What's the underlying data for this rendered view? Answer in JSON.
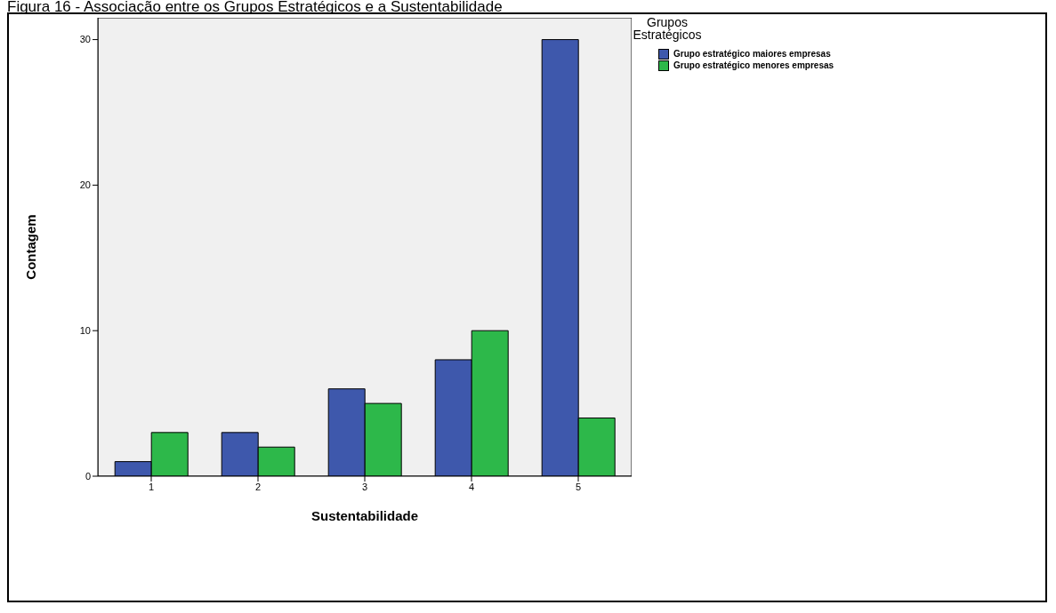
{
  "chart_data": {
    "type": "bar",
    "title": "Figura 16 - Associação entre os Grupos Estratégicos e a Sustentabilidade",
    "xlabel": "Sustentabilidade",
    "ylabel": "Contagem",
    "legend_title": "Grupos Estratégicos",
    "categories": [
      "1",
      "2",
      "3",
      "4",
      "5"
    ],
    "series": [
      {
        "name": "Grupo estratégico maiores empresas",
        "color": "#3e58ac",
        "values": [
          1,
          3,
          6,
          8,
          30
        ]
      },
      {
        "name": "Grupo estratégico menores empresas",
        "color": "#2db84a",
        "values": [
          3,
          2,
          5,
          10,
          4
        ]
      }
    ],
    "ylim": [
      0,
      31.5
    ],
    "yticks": [
      0,
      10,
      20,
      30
    ],
    "grid": false,
    "legend": "right"
  }
}
